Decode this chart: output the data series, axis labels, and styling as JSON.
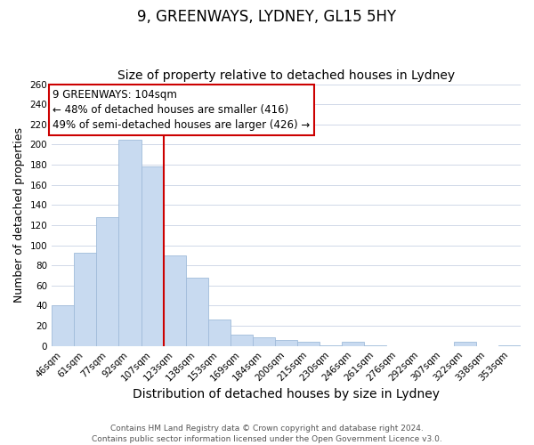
{
  "title": "9, GREENWAYS, LYDNEY, GL15 5HY",
  "subtitle": "Size of property relative to detached houses in Lydney",
  "xlabel": "Distribution of detached houses by size in Lydney",
  "ylabel": "Number of detached properties",
  "bar_values": [
    40,
    93,
    128,
    205,
    178,
    90,
    68,
    26,
    11,
    9,
    6,
    4,
    1,
    4,
    1,
    0,
    0,
    0,
    4,
    0,
    1
  ],
  "bar_labels": [
    "46sqm",
    "61sqm",
    "77sqm",
    "92sqm",
    "107sqm",
    "123sqm",
    "138sqm",
    "153sqm",
    "169sqm",
    "184sqm",
    "200sqm",
    "215sqm",
    "230sqm",
    "246sqm",
    "261sqm",
    "276sqm",
    "292sqm",
    "307sqm",
    "322sqm",
    "338sqm",
    "353sqm"
  ],
  "bar_color": "#c8daf0",
  "bar_edgecolor": "#a0bbda",
  "ylim": [
    0,
    260
  ],
  "yticks": [
    0,
    20,
    40,
    60,
    80,
    100,
    120,
    140,
    160,
    180,
    200,
    220,
    240,
    260
  ],
  "redline_index": 4,
  "annotation_title": "9 GREENWAYS: 104sqm",
  "annotation_line1": "← 48% of detached houses are smaller (416)",
  "annotation_line2": "49% of semi-detached houses are larger (426) →",
  "annotation_box_color": "#ffffff",
  "annotation_box_edgecolor": "#cc0000",
  "redline_color": "#cc0000",
  "footer_line1": "Contains HM Land Registry data © Crown copyright and database right 2024.",
  "footer_line2": "Contains public sector information licensed under the Open Government Licence v3.0.",
  "background_color": "#ffffff",
  "grid_color": "#d0d8e8",
  "title_fontsize": 12,
  "subtitle_fontsize": 10,
  "xlabel_fontsize": 10,
  "ylabel_fontsize": 9,
  "tick_fontsize": 7.5,
  "footer_fontsize": 6.5,
  "annotation_fontsize": 8.5
}
